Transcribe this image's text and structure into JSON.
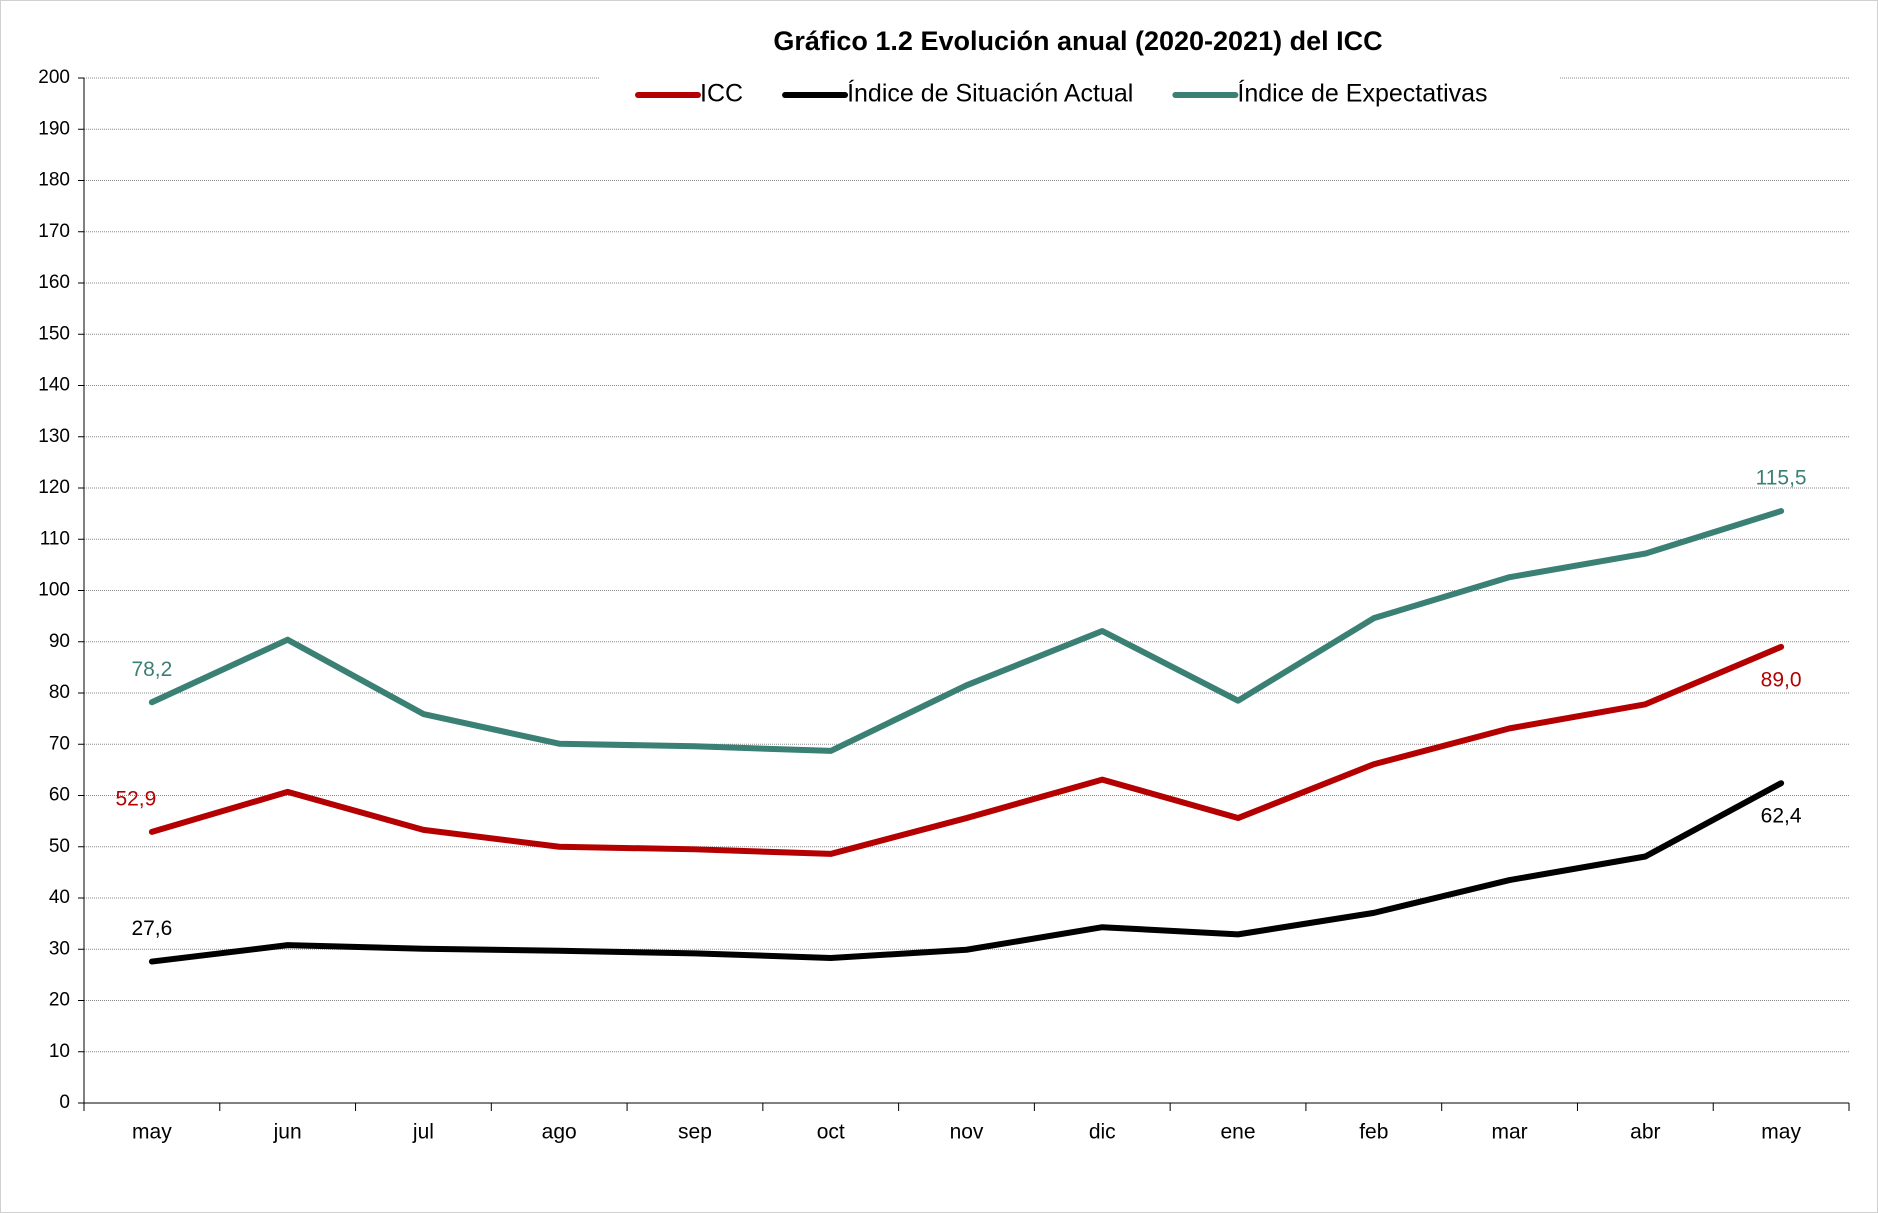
{
  "chart_data": {
    "type": "line",
    "title": "Gráfico 1.2 Evolución anual (2020-2021) del ICC",
    "categories": [
      "may",
      "jun",
      "jul",
      "ago",
      "sep",
      "oct",
      "nov",
      "dic",
      "ene",
      "feb",
      "mar",
      "abr",
      "may"
    ],
    "series": [
      {
        "name": "ICC",
        "color": "#b40000",
        "values": [
          52.9,
          60.7,
          53.3,
          50.0,
          49.5,
          48.6,
          55.6,
          63.1,
          55.6,
          66.1,
          73.1,
          77.8,
          89.0
        ],
        "value_labels": [
          "52,9",
          null,
          null,
          null,
          null,
          null,
          null,
          null,
          null,
          null,
          null,
          null,
          "89,0"
        ]
      },
      {
        "name": "Índice de Situación Actual",
        "color": "#000000",
        "values": [
          27.6,
          30.8,
          30.1,
          29.7,
          29.2,
          28.3,
          29.9,
          34.3,
          32.9,
          37.1,
          43.5,
          48.1,
          62.4
        ],
        "value_labels": [
          "27,6",
          null,
          null,
          null,
          null,
          null,
          null,
          null,
          null,
          null,
          null,
          null,
          "62,4"
        ]
      },
      {
        "name": "Índice de Expectativas",
        "color": "#3a8074",
        "values": [
          78.2,
          90.4,
          75.9,
          70.1,
          69.6,
          68.7,
          81.5,
          92.1,
          78.5,
          94.6,
          102.6,
          107.2,
          115.5
        ],
        "value_labels": [
          "78,2",
          null,
          null,
          null,
          null,
          null,
          null,
          null,
          null,
          null,
          null,
          null,
          "115,5"
        ]
      }
    ],
    "ylim": [
      0,
      200
    ],
    "yticks": [
      0,
      10,
      20,
      30,
      40,
      50,
      60,
      70,
      80,
      90,
      100,
      110,
      120,
      130,
      140,
      150,
      160,
      170,
      180,
      190,
      200
    ],
    "grid": true,
    "legend": "top"
  }
}
